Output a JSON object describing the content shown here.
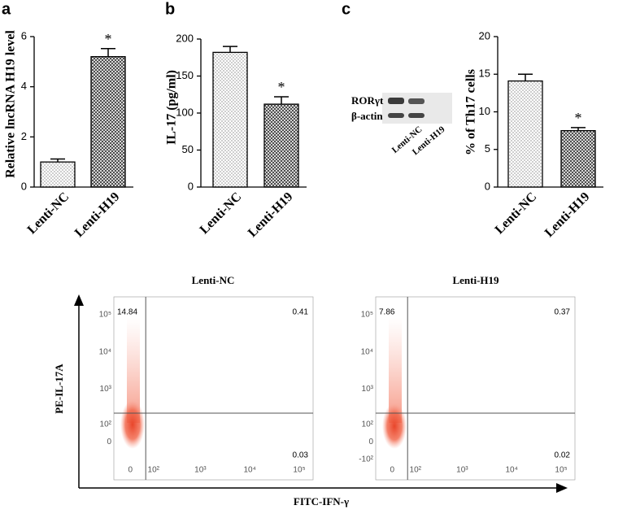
{
  "panel_labels": [
    "a",
    "b",
    "c"
  ],
  "western_blot": {
    "proteins": [
      "RORγt",
      "β-actin"
    ],
    "lanes": [
      "Lenti-NC",
      "Lenti-H19"
    ]
  },
  "flow_axes": {
    "y_label": "PE-IL-17A",
    "x_label": "FITC-IFN-γ"
  },
  "chart_data": [
    {
      "type": "bar",
      "y_label": "Relative lncRNA H19 level",
      "categories": [
        "Lenti-NC",
        "Lenti-H19"
      ],
      "values": [
        1.0,
        5.2
      ],
      "errors": [
        0.12,
        0.32
      ],
      "annotations": [
        null,
        "*"
      ],
      "fill_patterns": [
        "dots",
        "crosshatch"
      ],
      "ylim": [
        0,
        6
      ],
      "yticks": [
        0,
        2,
        4,
        6
      ]
    },
    {
      "type": "bar",
      "y_label": "IL-17 (pg/ml)",
      "categories": [
        "Lenti-NC",
        "Lenti-H19"
      ],
      "values": [
        182,
        112
      ],
      "errors": [
        8,
        10
      ],
      "annotations": [
        null,
        "*"
      ],
      "fill_patterns": [
        "dots",
        "crosshatch"
      ],
      "ylim": [
        0,
        200
      ],
      "yticks": [
        0,
        50,
        100,
        150,
        200
      ]
    },
    {
      "type": "bar",
      "y_label": "% of Th17 cells",
      "categories": [
        "Lenti-NC",
        "Lenti-H19"
      ],
      "values": [
        14.1,
        7.5
      ],
      "errors": [
        0.9,
        0.4
      ],
      "annotations": [
        null,
        "*"
      ],
      "fill_patterns": [
        "dots",
        "crosshatch"
      ],
      "ylim": [
        0,
        20
      ],
      "yticks": [
        0,
        5,
        10,
        15,
        20
      ]
    },
    {
      "type": "scatter",
      "title": "Lenti-NC",
      "scale": "biexponential",
      "color": "#f0593e",
      "quadrants": {
        "upper_left": 14.84,
        "upper_right": 0.41,
        "lower_right": 0.03
      },
      "gate": {
        "x": 60,
        "y": 220
      },
      "xlim": [
        -65,
        190000
      ],
      "ylim": [
        -400,
        300000
      ],
      "xticks": [
        0,
        {
          "value": 100,
          "label": "10²"
        },
        {
          "value": 1000,
          "label": "10³"
        },
        {
          "value": 10000,
          "label": "10⁴"
        },
        {
          "value": 100000,
          "label": "10⁵"
        }
      ],
      "yticks": [
        0,
        {
          "value": 100,
          "label": "10²"
        },
        {
          "value": 1000,
          "label": "10³"
        },
        {
          "value": 10000,
          "label": "10⁴"
        },
        {
          "value": 100000,
          "label": "10⁵"
        }
      ]
    },
    {
      "type": "scatter",
      "title": "Lenti-H19",
      "scale": "biexponential",
      "color": "#f0593e",
      "quadrants": {
        "upper_left": 7.86,
        "upper_right": 0.37,
        "lower_right": 0.02
      },
      "gate": {
        "x": 60,
        "y": 220
      },
      "xlim": [
        -65,
        190000
      ],
      "ylim": [
        -400,
        300000
      ],
      "xticks": [
        0,
        {
          "value": 100,
          "label": "10²"
        },
        {
          "value": 1000,
          "label": "10³"
        },
        {
          "value": 10000,
          "label": "10⁴"
        },
        {
          "value": 100000,
          "label": "10⁵"
        }
      ],
      "yticks": [
        {
          "value": -100,
          "label": "-10²"
        },
        0,
        {
          "value": 100,
          "label": "10²"
        },
        {
          "value": 1000,
          "label": "10³"
        },
        {
          "value": 10000,
          "label": "10⁴"
        },
        {
          "value": 100000,
          "label": "10⁵"
        }
      ]
    }
  ]
}
